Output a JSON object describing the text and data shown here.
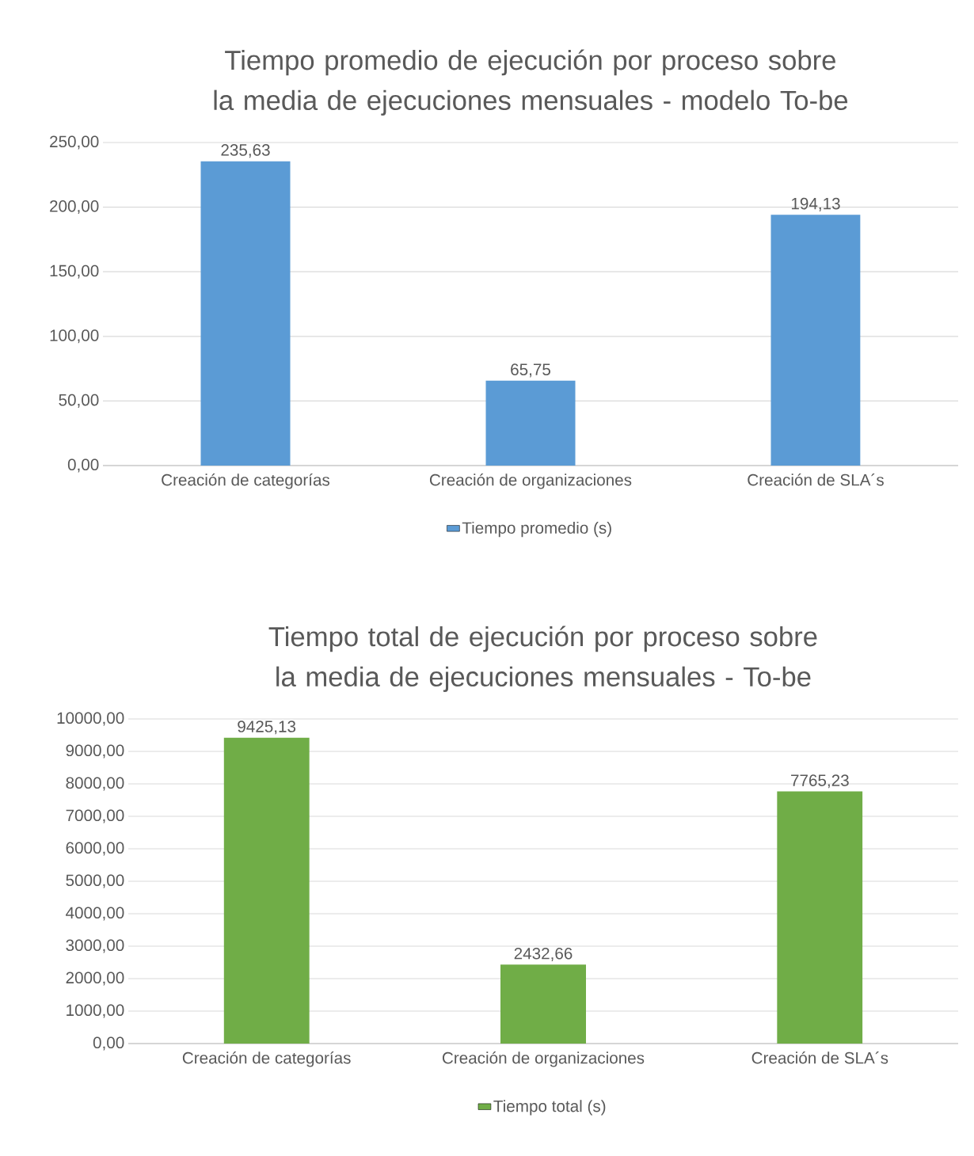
{
  "chart_data": [
    {
      "type": "bar",
      "title": "Tiempo promedio de ejecución por proceso sobre la media de ejecuciones mensuales - modelo To-be",
      "categories": [
        "Creación de categorías",
        "Creación de organizaciones",
        "Creación de SLA´s"
      ],
      "series": [
        {
          "name": "Tiempo promedio (s)",
          "color": "#5b9bd5",
          "values": [
            235.63,
            65.75,
            194.13
          ],
          "value_labels": [
            "235,63",
            "65,75",
            "194,13"
          ]
        }
      ],
      "ylim": [
        0,
        250
      ],
      "yticks": [
        {
          "value": 0,
          "label": "0,00"
        },
        {
          "value": 50,
          "label": "50,00"
        },
        {
          "value": 100,
          "label": "100,00"
        },
        {
          "value": 150,
          "label": "150,00"
        },
        {
          "value": 200,
          "label": "200,00"
        },
        {
          "value": 250,
          "label": "250,00"
        }
      ],
      "grid": "y",
      "legend": "bottom"
    },
    {
      "type": "bar",
      "title": "Tiempo total de ejecución por proceso sobre la media de ejecuciones mensuales - To-be",
      "categories": [
        "Creación de categorías",
        "Creación de organizaciones",
        "Creación de SLA´s"
      ],
      "series": [
        {
          "name": "Tiempo total (s)",
          "color": "#70ad47",
          "values": [
            9425.13,
            2432.66,
            7765.23
          ],
          "value_labels": [
            "9425,13",
            "2432,66",
            "7765,23"
          ]
        }
      ],
      "ylim": [
        0,
        10000
      ],
      "yticks": [
        {
          "value": 0,
          "label": "0,00"
        },
        {
          "value": 1000,
          "label": "1000,00"
        },
        {
          "value": 2000,
          "label": "2000,00"
        },
        {
          "value": 3000,
          "label": "3000,00"
        },
        {
          "value": 4000,
          "label": "4000,00"
        },
        {
          "value": 5000,
          "label": "5000,00"
        },
        {
          "value": 6000,
          "label": "6000,00"
        },
        {
          "value": 7000,
          "label": "7000,00"
        },
        {
          "value": 8000,
          "label": "8000,00"
        },
        {
          "value": 9000,
          "label": "9000,00"
        },
        {
          "value": 10000,
          "label": "10000,00"
        }
      ],
      "grid": "y",
      "legend": "bottom"
    }
  ]
}
